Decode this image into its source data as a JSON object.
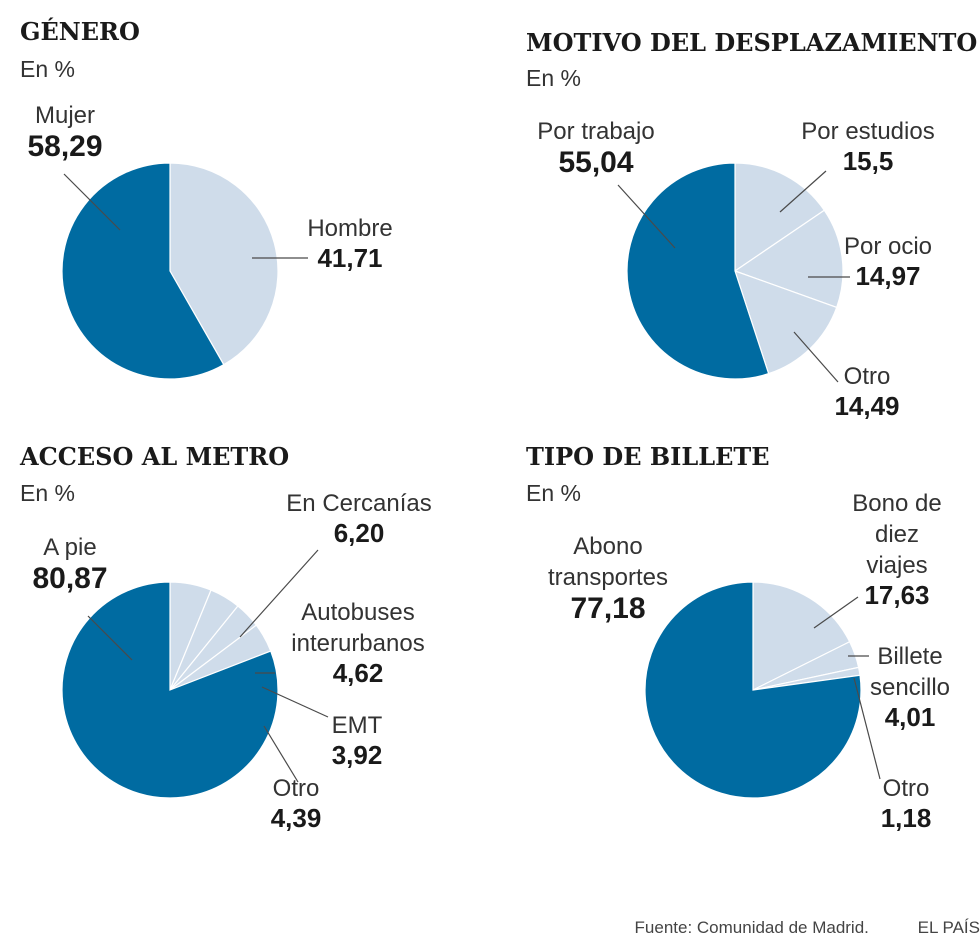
{
  "colors": {
    "primary": "#006ba1",
    "secondary": "#cfdcea",
    "separator": "#ffffff"
  },
  "chart_data": [
    {
      "type": "pie",
      "title": "GÉNERO",
      "subtitle": "En %",
      "slices": [
        {
          "name": [
            "Mujer"
          ],
          "value": 58.29,
          "display": "58,29",
          "color": "#006ba1"
        },
        {
          "name": [
            "Hombre"
          ],
          "value": 41.71,
          "display": "41,71",
          "color": "#cfdcea"
        }
      ]
    },
    {
      "type": "pie",
      "title": "MOTIVO DEL DESPLAZAMIENTO",
      "subtitle": "En %",
      "slices": [
        {
          "name": [
            "Por trabajo"
          ],
          "value": 55.04,
          "display": "55,04",
          "color": "#006ba1"
        },
        {
          "name": [
            "Por estudios"
          ],
          "value": 15.5,
          "display": "15,5",
          "color": "#cfdcea"
        },
        {
          "name": [
            "Por ocio"
          ],
          "value": 14.97,
          "display": "14,97",
          "color": "#cfdcea"
        },
        {
          "name": [
            "Otro"
          ],
          "value": 14.49,
          "display": "14,49",
          "color": "#cfdcea"
        }
      ]
    },
    {
      "type": "pie",
      "title": "ACCESO AL METRO",
      "subtitle": "En %",
      "slices": [
        {
          "name": [
            "A pie"
          ],
          "value": 80.87,
          "display": "80,87",
          "color": "#006ba1"
        },
        {
          "name": [
            "En Cercanías"
          ],
          "value": 6.2,
          "display": "6,20",
          "color": "#cfdcea"
        },
        {
          "name": [
            "Autobuses",
            "interurbanos"
          ],
          "value": 4.62,
          "display": "4,62",
          "color": "#cfdcea"
        },
        {
          "name": [
            "EMT"
          ],
          "value": 3.92,
          "display": "3,92",
          "color": "#cfdcea"
        },
        {
          "name": [
            "Otro"
          ],
          "value": 4.39,
          "display": "4,39",
          "color": "#cfdcea"
        }
      ]
    },
    {
      "type": "pie",
      "title": "TIPO DE BILLETE",
      "subtitle": "En %",
      "slices": [
        {
          "name": [
            "Abono",
            "transportes"
          ],
          "value": 77.18,
          "display": "77,18",
          "color": "#006ba1"
        },
        {
          "name": [
            "Bono de",
            "diez",
            "viajes"
          ],
          "value": 17.63,
          "display": "17,63",
          "color": "#cfdcea"
        },
        {
          "name": [
            "Billete",
            "sencillo"
          ],
          "value": 4.01,
          "display": "4,01",
          "color": "#cfdcea"
        },
        {
          "name": [
            "Otro"
          ],
          "value": 1.18,
          "display": "1,18",
          "color": "#cfdcea"
        }
      ]
    }
  ],
  "footer": {
    "source": "Fuente: Comunidad de Madrid.",
    "brand": "EL PAÍS"
  }
}
